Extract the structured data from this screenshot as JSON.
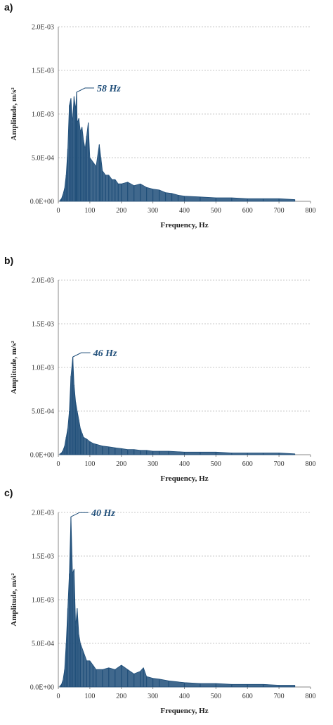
{
  "colors": {
    "series": "#1f4e79",
    "grid": "#b8b8b8",
    "axis": "#8a8a8a"
  },
  "chart_data": [
    {
      "type": "line",
      "panel_label": "a)",
      "xlabel": "Frequency, Hz",
      "ylabel": "Amplitude, m/s²",
      "xlim": [
        0,
        800
      ],
      "ylim": [
        0,
        0.002
      ],
      "x_ticks": [
        "0",
        "100",
        "200",
        "300",
        "400",
        "500",
        "600",
        "700",
        "800"
      ],
      "y_ticks": [
        "0.0E+00",
        "5.0E-04",
        "1.0E-03",
        "1.5E-03",
        "2.0E-03"
      ],
      "grid": "horizontal dashed",
      "annotation": {
        "text": "58 Hz",
        "x": 58,
        "y": 0.00125
      },
      "series": [
        {
          "x": [
            5,
            10,
            15,
            20,
            25,
            30,
            35,
            40,
            45,
            50,
            55,
            58,
            60,
            65,
            70,
            75,
            80,
            85,
            90,
            95,
            100,
            110,
            120,
            130,
            135,
            140,
            150,
            160,
            170,
            180,
            190,
            200,
            220,
            240,
            260,
            280,
            300,
            320,
            340,
            360,
            380,
            400,
            450,
            500,
            550,
            600,
            650,
            700,
            750
          ],
          "values": [
            1e-05,
            3e-05,
            8e-05,
            0.00015,
            0.0003,
            0.0006,
            0.0011,
            0.00118,
            0.0009,
            0.0012,
            0.00105,
            0.00125,
            0.0009,
            0.00095,
            0.0008,
            0.00085,
            0.0007,
            0.0006,
            0.00075,
            0.0009,
            0.0005,
            0.00045,
            0.0004,
            0.00065,
            0.0005,
            0.00035,
            0.0003,
            0.0003,
            0.00025,
            0.00025,
            0.0002,
            0.0002,
            0.00022,
            0.00018,
            0.0002,
            0.00016,
            0.00014,
            0.00013,
            0.0001,
            9e-05,
            7e-05,
            6e-05,
            5e-05,
            4e-05,
            4e-05,
            3e-05,
            3e-05,
            3e-05,
            2e-05
          ]
        }
      ]
    },
    {
      "type": "line",
      "panel_label": "b)",
      "xlabel": "Frequency, Hz",
      "ylabel": "Amplitude, m/s²",
      "xlim": [
        0,
        800
      ],
      "ylim": [
        0,
        0.002
      ],
      "x_ticks": [
        "0",
        "100",
        "200",
        "300",
        "400",
        "500",
        "600",
        "700",
        "800"
      ],
      "y_ticks": [
        "0.0E+00",
        "5.0E-04",
        "1.0E-03",
        "1.5E-03",
        "2.0E-03"
      ],
      "grid": "horizontal dashed",
      "annotation": {
        "text": "46 Hz",
        "x": 46,
        "y": 0.00112
      },
      "series": [
        {
          "x": [
            5,
            10,
            15,
            20,
            25,
            30,
            35,
            40,
            46,
            50,
            55,
            60,
            65,
            70,
            75,
            80,
            90,
            100,
            110,
            120,
            140,
            160,
            180,
            200,
            220,
            240,
            260,
            280,
            300,
            320,
            350,
            400,
            450,
            500,
            550,
            600,
            650,
            700,
            750
          ],
          "values": [
            1e-05,
            2e-05,
            5e-05,
            0.0001,
            0.0002,
            0.0003,
            0.0005,
            0.0009,
            0.00112,
            0.0008,
            0.0006,
            0.0005,
            0.0004,
            0.0003,
            0.00025,
            0.0002,
            0.00018,
            0.00015,
            0.00013,
            0.00012,
            0.0001,
            9e-05,
            8e-05,
            7e-05,
            6e-05,
            6e-05,
            5e-05,
            5e-05,
            4e-05,
            4e-05,
            4e-05,
            3e-05,
            3e-05,
            3e-05,
            2e-05,
            2e-05,
            2e-05,
            2e-05,
            1e-05
          ]
        }
      ]
    },
    {
      "type": "line",
      "panel_label": "c)",
      "xlabel": "Frequency, Hz",
      "ylabel": "Amplitude, m/s²",
      "xlim": [
        0,
        800
      ],
      "ylim": [
        0,
        0.002
      ],
      "x_ticks": [
        "0",
        "100",
        "200",
        "300",
        "400",
        "500",
        "600",
        "700",
        "800"
      ],
      "y_ticks": [
        "0.0E+00",
        "5.0E-04",
        "1.0E-03",
        "1.5E-03",
        "2.0E-03"
      ],
      "grid": "horizontal dashed",
      "annotation": {
        "text": "40 Hz",
        "x": 40,
        "y": 0.00195
      },
      "series": [
        {
          "x": [
            5,
            10,
            15,
            20,
            25,
            30,
            35,
            40,
            45,
            50,
            55,
            60,
            65,
            70,
            80,
            90,
            100,
            110,
            120,
            140,
            160,
            180,
            200,
            220,
            240,
            260,
            270,
            280,
            300,
            320,
            350,
            400,
            450,
            500,
            550,
            600,
            650,
            700,
            750
          ],
          "values": [
            1e-05,
            3e-05,
            8e-05,
            0.0002,
            0.0005,
            0.0009,
            0.0013,
            0.00195,
            0.0013,
            0.00135,
            0.0007,
            0.0009,
            0.0006,
            0.0005,
            0.0004,
            0.0003,
            0.0003,
            0.00025,
            0.0002,
            0.0002,
            0.00022,
            0.0002,
            0.00025,
            0.0002,
            0.00015,
            0.00018,
            0.00022,
            0.00012,
            0.0001,
            9e-05,
            7e-05,
            5e-05,
            4e-05,
            4e-05,
            3e-05,
            3e-05,
            3e-05,
            2e-05,
            2e-05
          ]
        }
      ]
    }
  ]
}
